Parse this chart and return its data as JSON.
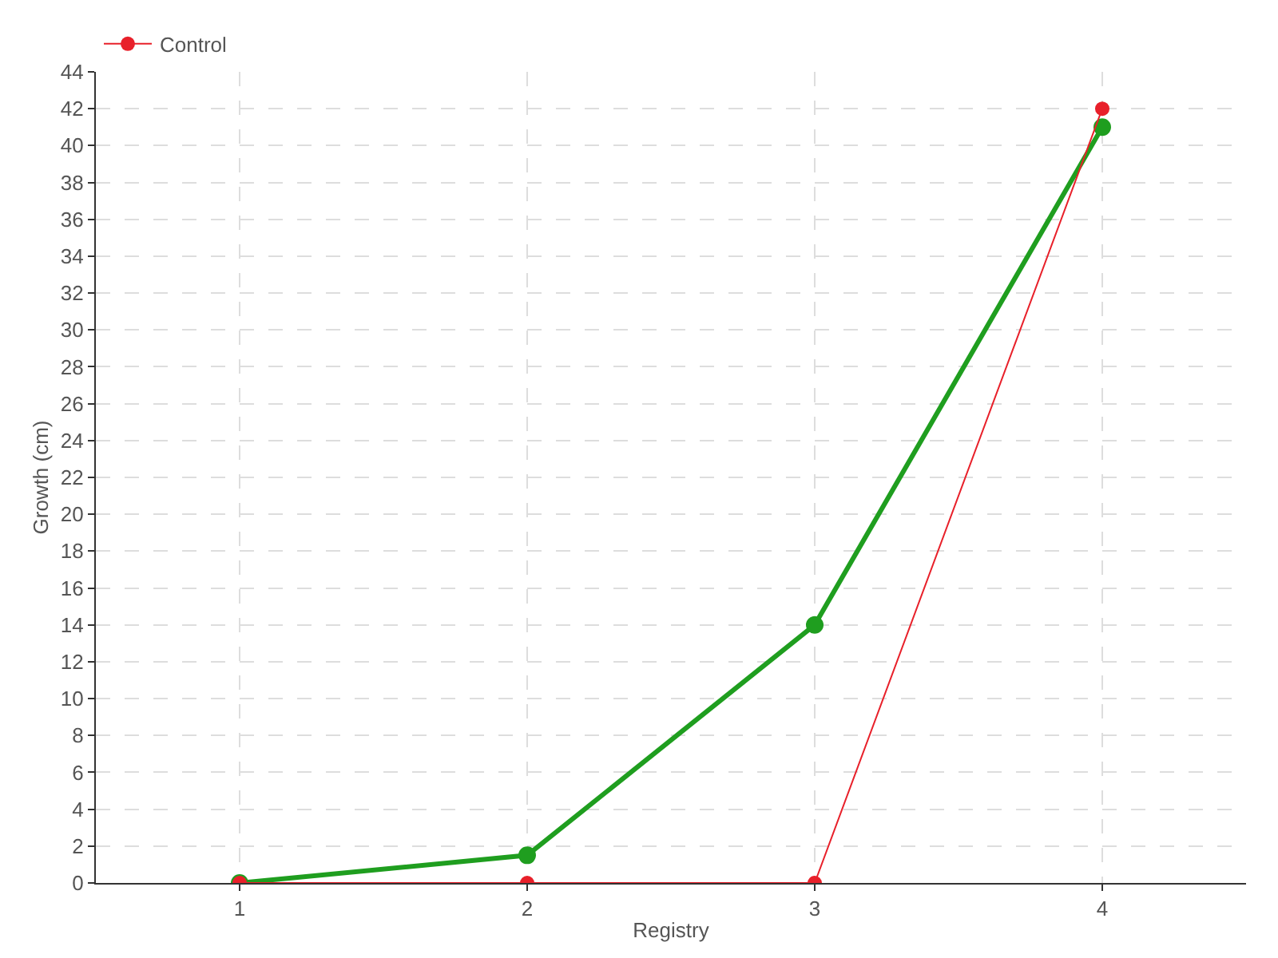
{
  "chart_data": {
    "type": "line",
    "xlabel": "Registry",
    "ylabel": "Growth (cm)",
    "x": [
      1,
      2,
      3,
      4
    ],
    "series": [
      {
        "color": "#1f9e1f",
        "values": [
          0,
          1.5,
          14,
          41
        ]
      },
      {
        "name": "Control",
        "color": "#e8202a",
        "values": [
          0,
          0,
          0,
          42
        ]
      }
    ],
    "xlim": [
      0.5,
      4.5
    ],
    "xticks": [
      1,
      2,
      3,
      4
    ],
    "ylim": [
      0,
      44
    ],
    "yticks": [
      0,
      2,
      4,
      6,
      8,
      10,
      12,
      14,
      16,
      18,
      20,
      22,
      24,
      26,
      28,
      30,
      32,
      34,
      36,
      38,
      40,
      42,
      44
    ],
    "grid": true,
    "legend": "top left",
    "marker": "circle",
    "line_style": "solid"
  }
}
